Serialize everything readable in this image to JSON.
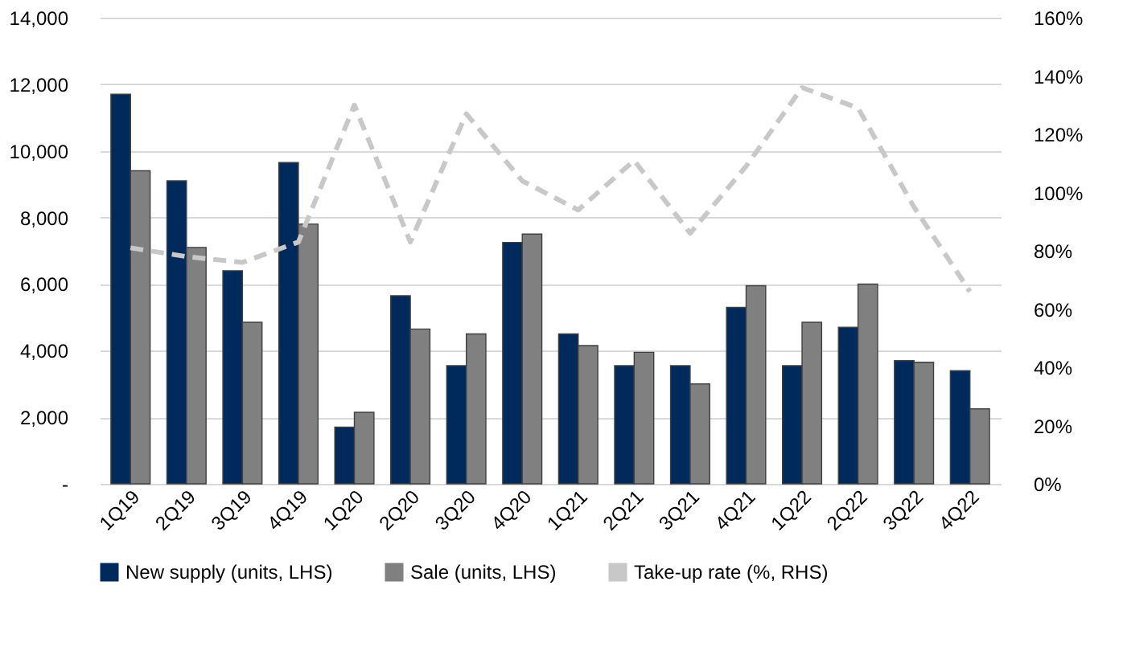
{
  "chart_data": {
    "type": "bar",
    "categories": [
      "1Q19",
      "2Q19",
      "3Q19",
      "4Q19",
      "1Q20",
      "2Q20",
      "3Q20",
      "4Q20",
      "1Q21",
      "2Q21",
      "3Q21",
      "4Q21",
      "1Q22",
      "2Q22",
      "3Q22",
      "4Q22"
    ],
    "series": [
      {
        "name": "New supply (units, LHS)",
        "color": "#002a5c",
        "values": [
          11700,
          9100,
          6400,
          9650,
          1700,
          5650,
          3550,
          7250,
          4500,
          3550,
          3550,
          5300,
          3550,
          4700,
          3700,
          3400
        ]
      },
      {
        "name": "Sale (units, LHS)",
        "color": "#808080",
        "values": [
          9400,
          7100,
          4850,
          7800,
          2150,
          4650,
          4500,
          7500,
          4150,
          3950,
          3000,
          5950,
          4850,
          6000,
          3650,
          2250
        ]
      },
      {
        "name": "Take-up rate (%, RHS)",
        "type": "line",
        "axis": "y2",
        "line_style": "dashed",
        "color": "#c8c8c8",
        "values": [
          81,
          78,
          76,
          83,
          130,
          83,
          127,
          104,
          94,
          111,
          86,
          109,
          136,
          129,
          95,
          66
        ]
      }
    ],
    "ylim": [
      0,
      14000
    ],
    "yticks": [
      {
        "value": 0,
        "label": "-"
      },
      {
        "value": 2000,
        "label": "2,000"
      },
      {
        "value": 4000,
        "label": "4,000"
      },
      {
        "value": 6000,
        "label": "6,000"
      },
      {
        "value": 8000,
        "label": "8,000"
      },
      {
        "value": 10000,
        "label": "10,000"
      },
      {
        "value": 12000,
        "label": "12,000"
      },
      {
        "value": 14000,
        "label": "14,000"
      }
    ],
    "y2lim": [
      0,
      160
    ],
    "y2ticks": [
      {
        "value": 0,
        "label": "0%"
      },
      {
        "value": 20,
        "label": "20%"
      },
      {
        "value": 40,
        "label": "40%"
      },
      {
        "value": 60,
        "label": "60%"
      },
      {
        "value": 80,
        "label": "80%"
      },
      {
        "value": 100,
        "label": "100%"
      },
      {
        "value": 120,
        "label": "120%"
      },
      {
        "value": 140,
        "label": "140%"
      },
      {
        "value": 160,
        "label": "160%"
      }
    ],
    "grid": "y",
    "legend": "bottom"
  }
}
